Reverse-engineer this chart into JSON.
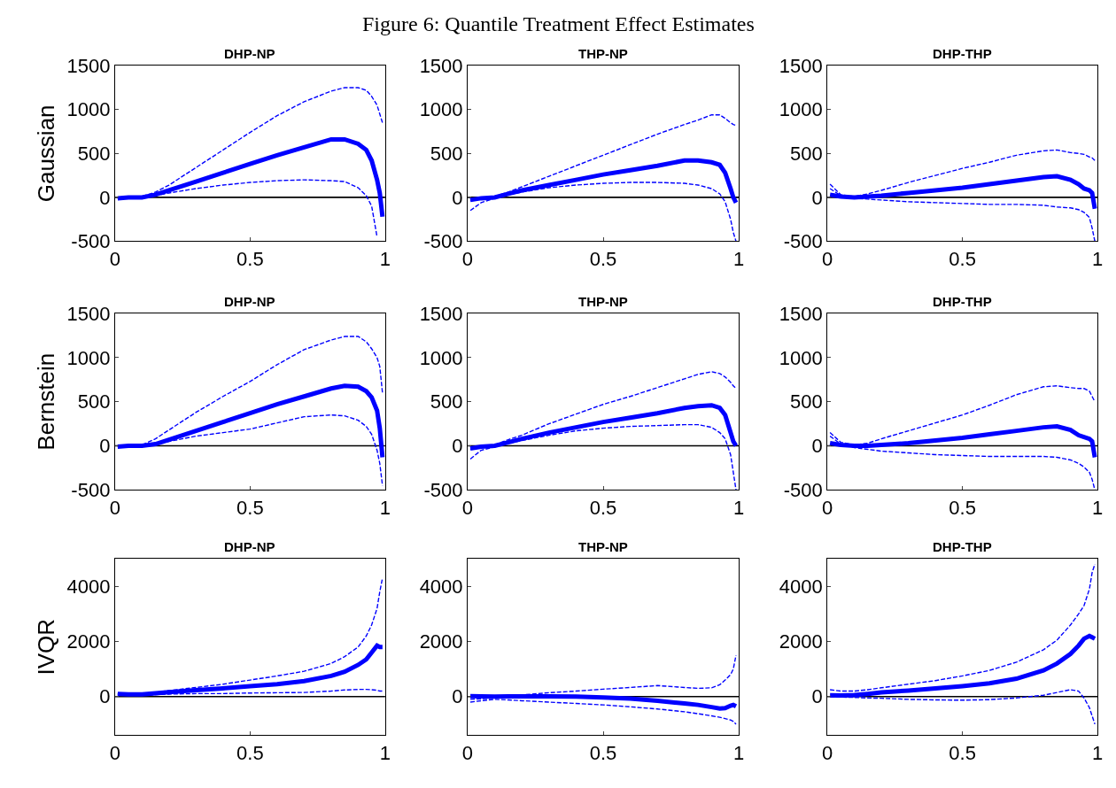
{
  "chart_data": [
    {
      "type": "line",
      "title": "DHP-NP",
      "ylabel": "Gaussian",
      "annotations": [
        "Figure 6: Quantile Treatment Effect Estimates"
      ],
      "x": [
        0.01,
        0.05,
        0.1,
        0.15,
        0.2,
        0.3,
        0.4,
        0.5,
        0.6,
        0.7,
        0.8,
        0.85,
        0.9,
        0.93,
        0.95,
        0.97,
        0.98,
        0.99
      ],
      "xlim": [
        0,
        1
      ],
      "xticks": [
        0,
        0.5,
        1
      ],
      "ylim": [
        -500,
        1500
      ],
      "yticks": [
        -500,
        0,
        500,
        1000,
        1500
      ],
      "grid": false,
      "ref_lines": [
        {
          "axis": "y",
          "value": 0,
          "color": "#000000"
        }
      ],
      "series": [
        {
          "color": "#0000ff",
          "line_style": "solid",
          "values": [
            -10,
            0,
            0,
            30,
            80,
            180,
            280,
            380,
            480,
            570,
            660,
            660,
            610,
            540,
            420,
            200,
            50,
            -220
          ]
        },
        {
          "color": "#0000ff",
          "line_style": "dashed",
          "values": [
            -10,
            0,
            10,
            60,
            140,
            340,
            540,
            740,
            930,
            1090,
            1210,
            1250,
            1250,
            1220,
            1150,
            1050,
            950,
            850
          ]
        },
        {
          "color": "#0000ff",
          "line_style": "dashed",
          "values": [
            -10,
            0,
            0,
            20,
            50,
            100,
            140,
            170,
            190,
            200,
            190,
            180,
            110,
            20,
            -100,
            -450,
            null,
            null
          ]
        }
      ]
    },
    {
      "type": "line",
      "title": "THP-NP",
      "x": [
        0.01,
        0.05,
        0.1,
        0.15,
        0.2,
        0.3,
        0.4,
        0.5,
        0.6,
        0.7,
        0.8,
        0.85,
        0.9,
        0.93,
        0.95,
        0.97,
        0.98,
        0.99
      ],
      "xlim": [
        0,
        1
      ],
      "xticks": [
        0,
        0.5,
        1
      ],
      "ylim": [
        -500,
        1500
      ],
      "yticks": [
        -500,
        0,
        500,
        1000,
        1500
      ],
      "grid": false,
      "ref_lines": [
        {
          "axis": "y",
          "value": 0,
          "color": "#000000"
        }
      ],
      "series": [
        {
          "color": "#0000ff",
          "line_style": "solid",
          "values": [
            -30,
            -10,
            0,
            40,
            80,
            140,
            200,
            260,
            310,
            360,
            420,
            420,
            400,
            370,
            280,
            100,
            0,
            -60
          ]
        },
        {
          "color": "#0000ff",
          "line_style": "dashed",
          "values": [
            -40,
            -10,
            10,
            60,
            120,
            240,
            360,
            480,
            600,
            720,
            830,
            880,
            940,
            940,
            900,
            850,
            830,
            820
          ]
        },
        {
          "color": "#0000ff",
          "line_style": "dashed",
          "values": [
            -150,
            -60,
            -10,
            30,
            60,
            110,
            140,
            160,
            170,
            170,
            160,
            140,
            100,
            40,
            -50,
            -250,
            -400,
            -500
          ]
        }
      ]
    },
    {
      "type": "line",
      "title": "DHP-THP",
      "x": [
        0.01,
        0.05,
        0.1,
        0.15,
        0.2,
        0.3,
        0.4,
        0.5,
        0.6,
        0.7,
        0.8,
        0.85,
        0.9,
        0.93,
        0.95,
        0.97,
        0.98,
        0.99
      ],
      "xlim": [
        0,
        1
      ],
      "xticks": [
        0,
        0.5,
        1
      ],
      "ylim": [
        -500,
        1500
      ],
      "yticks": [
        -500,
        0,
        500,
        1000,
        1500
      ],
      "grid": false,
      "ref_lines": [
        {
          "axis": "y",
          "value": 0,
          "color": "#000000"
        }
      ],
      "series": [
        {
          "color": "#0000ff",
          "line_style": "solid",
          "values": [
            30,
            10,
            0,
            10,
            20,
            50,
            80,
            110,
            150,
            190,
            230,
            240,
            200,
            150,
            100,
            80,
            50,
            -130
          ]
        },
        {
          "color": "#0000ff",
          "line_style": "dashed",
          "values": [
            150,
            30,
            10,
            40,
            80,
            170,
            250,
            330,
            400,
            480,
            530,
            540,
            510,
            500,
            490,
            460,
            450,
            420
          ]
        },
        {
          "color": "#0000ff",
          "line_style": "dashed",
          "values": [
            100,
            20,
            -10,
            -20,
            -30,
            -50,
            -60,
            -70,
            -80,
            -80,
            -90,
            -110,
            -120,
            -140,
            -170,
            -230,
            -350,
            -500
          ]
        }
      ]
    },
    {
      "type": "line",
      "title": "DHP-NP",
      "ylabel": "Bernstein",
      "x": [
        0.01,
        0.05,
        0.1,
        0.15,
        0.2,
        0.3,
        0.4,
        0.5,
        0.6,
        0.7,
        0.8,
        0.85,
        0.9,
        0.93,
        0.95,
        0.97,
        0.98,
        0.99
      ],
      "xlim": [
        0,
        1
      ],
      "xticks": [
        0,
        0.5,
        1
      ],
      "ylim": [
        -500,
        1500
      ],
      "yticks": [
        -500,
        0,
        500,
        1000,
        1500
      ],
      "grid": false,
      "ref_lines": [
        {
          "axis": "y",
          "value": 0,
          "color": "#000000"
        }
      ],
      "series": [
        {
          "color": "#0000ff",
          "line_style": "solid",
          "values": [
            -10,
            0,
            0,
            20,
            70,
            170,
            270,
            370,
            470,
            560,
            650,
            680,
            670,
            620,
            550,
            400,
            200,
            -130
          ]
        },
        {
          "color": "#0000ff",
          "line_style": "dashed",
          "values": [
            -10,
            0,
            10,
            80,
            180,
            380,
            560,
            730,
            920,
            1090,
            1200,
            1240,
            1240,
            1180,
            1100,
            1000,
            900,
            600
          ]
        },
        {
          "color": "#0000ff",
          "line_style": "dashed",
          "values": [
            -10,
            0,
            0,
            20,
            50,
            110,
            150,
            190,
            260,
            330,
            350,
            340,
            290,
            220,
            130,
            -50,
            -200,
            -450
          ]
        }
      ]
    },
    {
      "type": "line",
      "title": "THP-NP",
      "x": [
        0.01,
        0.05,
        0.1,
        0.15,
        0.2,
        0.3,
        0.4,
        0.5,
        0.6,
        0.7,
        0.8,
        0.85,
        0.9,
        0.93,
        0.95,
        0.97,
        0.98,
        0.99
      ],
      "xlim": [
        0,
        1
      ],
      "xticks": [
        0,
        0.5,
        1
      ],
      "ylim": [
        -500,
        1500
      ],
      "yticks": [
        -500,
        0,
        500,
        1000,
        1500
      ],
      "grid": false,
      "ref_lines": [
        {
          "axis": "y",
          "value": 0,
          "color": "#000000"
        }
      ],
      "series": [
        {
          "color": "#0000ff",
          "line_style": "solid",
          "values": [
            -30,
            -10,
            0,
            40,
            80,
            150,
            210,
            270,
            320,
            370,
            430,
            450,
            460,
            430,
            350,
            150,
            50,
            0
          ]
        },
        {
          "color": "#0000ff",
          "line_style": "dashed",
          "values": [
            -40,
            -10,
            10,
            70,
            120,
            250,
            360,
            470,
            560,
            660,
            760,
            810,
            840,
            820,
            780,
            720,
            680,
            650
          ]
        },
        {
          "color": "#0000ff",
          "line_style": "dashed",
          "values": [
            -150,
            -50,
            -10,
            30,
            60,
            120,
            170,
            200,
            220,
            230,
            240,
            240,
            210,
            150,
            80,
            -100,
            -300,
            -500
          ]
        }
      ]
    },
    {
      "type": "line",
      "title": "DHP-THP",
      "x": [
        0.01,
        0.05,
        0.1,
        0.15,
        0.2,
        0.3,
        0.4,
        0.5,
        0.6,
        0.7,
        0.8,
        0.85,
        0.9,
        0.93,
        0.95,
        0.97,
        0.98,
        0.99
      ],
      "xlim": [
        0,
        1
      ],
      "xticks": [
        0,
        0.5,
        1
      ],
      "ylim": [
        -500,
        1500
      ],
      "yticks": [
        -500,
        0,
        500,
        1000,
        1500
      ],
      "grid": false,
      "ref_lines": [
        {
          "axis": "y",
          "value": 0,
          "color": "#000000"
        }
      ],
      "series": [
        {
          "color": "#0000ff",
          "line_style": "solid",
          "values": [
            30,
            10,
            0,
            0,
            10,
            30,
            60,
            90,
            130,
            170,
            210,
            220,
            180,
            120,
            100,
            80,
            50,
            -130
          ]
        },
        {
          "color": "#0000ff",
          "line_style": "dashed",
          "values": [
            150,
            40,
            10,
            30,
            80,
            170,
            260,
            350,
            460,
            580,
            670,
            680,
            660,
            650,
            650,
            620,
            560,
            500
          ]
        },
        {
          "color": "#0000ff",
          "line_style": "dashed",
          "values": [
            110,
            20,
            -20,
            -40,
            -60,
            -80,
            -100,
            -110,
            -120,
            -120,
            -120,
            -130,
            -160,
            -200,
            -240,
            -300,
            -380,
            -500
          ]
        }
      ]
    },
    {
      "type": "line",
      "title": "DHP-NP",
      "ylabel": "IVQR",
      "x": [
        0.01,
        0.05,
        0.1,
        0.15,
        0.2,
        0.3,
        0.4,
        0.5,
        0.6,
        0.7,
        0.8,
        0.85,
        0.9,
        0.93,
        0.95,
        0.97,
        0.98,
        0.99
      ],
      "xlim": [
        0,
        1
      ],
      "xticks": [
        0,
        0.5,
        1
      ],
      "ylim": [
        -1400,
        5000
      ],
      "yticks": [
        0,
        2000,
        4000
      ],
      "grid": false,
      "ref_lines": [
        {
          "axis": "y",
          "value": 0,
          "color": "#000000"
        }
      ],
      "series": [
        {
          "color": "#0000ff",
          "line_style": "solid",
          "values": [
            100,
            80,
            80,
            120,
            160,
            230,
            300,
            380,
            450,
            560,
            750,
            900,
            1150,
            1350,
            1600,
            1850,
            1800,
            1800
          ]
        },
        {
          "color": "#0000ff",
          "line_style": "dashed",
          "values": [
            100,
            80,
            100,
            150,
            220,
            330,
            450,
            600,
            750,
            920,
            1200,
            1450,
            1800,
            2200,
            2600,
            3200,
            3800,
            4300
          ]
        },
        {
          "color": "#0000ff",
          "line_style": "dashed",
          "values": [
            80,
            60,
            50,
            70,
            90,
            110,
            110,
            130,
            140,
            150,
            200,
            240,
            260,
            260,
            250,
            230,
            200,
            200
          ]
        }
      ]
    },
    {
      "type": "line",
      "title": "THP-NP",
      "x": [
        0.01,
        0.05,
        0.1,
        0.15,
        0.2,
        0.3,
        0.4,
        0.5,
        0.6,
        0.7,
        0.8,
        0.85,
        0.9,
        0.93,
        0.95,
        0.97,
        0.98,
        0.99
      ],
      "xlim": [
        0,
        1
      ],
      "xticks": [
        0,
        0.5,
        1
      ],
      "ylim": [
        -1400,
        5000
      ],
      "yticks": [
        0,
        2000,
        4000
      ],
      "grid": false,
      "ref_lines": [
        {
          "axis": "y",
          "value": 0,
          "color": "#000000"
        }
      ],
      "series": [
        {
          "color": "#0000ff",
          "line_style": "solid",
          "values": [
            20,
            10,
            0,
            10,
            10,
            10,
            0,
            -30,
            -70,
            -150,
            -250,
            -300,
            -380,
            -430,
            -420,
            -330,
            -300,
            -350
          ]
        },
        {
          "color": "#0000ff",
          "line_style": "dashed",
          "values": [
            -100,
            -80,
            -50,
            0,
            60,
            140,
            200,
            270,
            330,
            400,
            330,
            300,
            320,
            430,
            600,
            800,
            1000,
            1500
          ]
        },
        {
          "color": "#0000ff",
          "line_style": "dashed",
          "values": [
            -200,
            -150,
            -100,
            -120,
            -150,
            -200,
            -250,
            -300,
            -370,
            -450,
            -550,
            -620,
            -700,
            -750,
            -800,
            -850,
            -900,
            -1000
          ]
        }
      ]
    },
    {
      "type": "line",
      "title": "DHP-THP",
      "x": [
        0.01,
        0.05,
        0.1,
        0.15,
        0.2,
        0.3,
        0.4,
        0.5,
        0.6,
        0.7,
        0.8,
        0.85,
        0.9,
        0.93,
        0.95,
        0.97,
        0.98,
        0.99
      ],
      "xlim": [
        0,
        1
      ],
      "xticks": [
        0,
        0.5,
        1
      ],
      "ylim": [
        -1400,
        5000
      ],
      "yticks": [
        0,
        2000,
        4000
      ],
      "grid": false,
      "ref_lines": [
        {
          "axis": "y",
          "value": 0,
          "color": "#000000"
        }
      ],
      "series": [
        {
          "color": "#0000ff",
          "line_style": "solid",
          "values": [
            50,
            40,
            60,
            100,
            150,
            220,
            300,
            380,
            480,
            650,
            950,
            1200,
            1550,
            1850,
            2100,
            2200,
            2150,
            2100
          ]
        },
        {
          "color": "#0000ff",
          "line_style": "dashed",
          "values": [
            250,
            200,
            200,
            250,
            320,
            450,
            580,
            750,
            950,
            1250,
            1700,
            2050,
            2600,
            3000,
            3300,
            3900,
            4500,
            4800
          ]
        },
        {
          "color": "#0000ff",
          "line_style": "dashed",
          "values": [
            0,
            -20,
            -30,
            -50,
            -60,
            -100,
            -120,
            -130,
            -110,
            -50,
            50,
            150,
            250,
            200,
            -50,
            -400,
            -700,
            -1000
          ]
        }
      ]
    }
  ]
}
